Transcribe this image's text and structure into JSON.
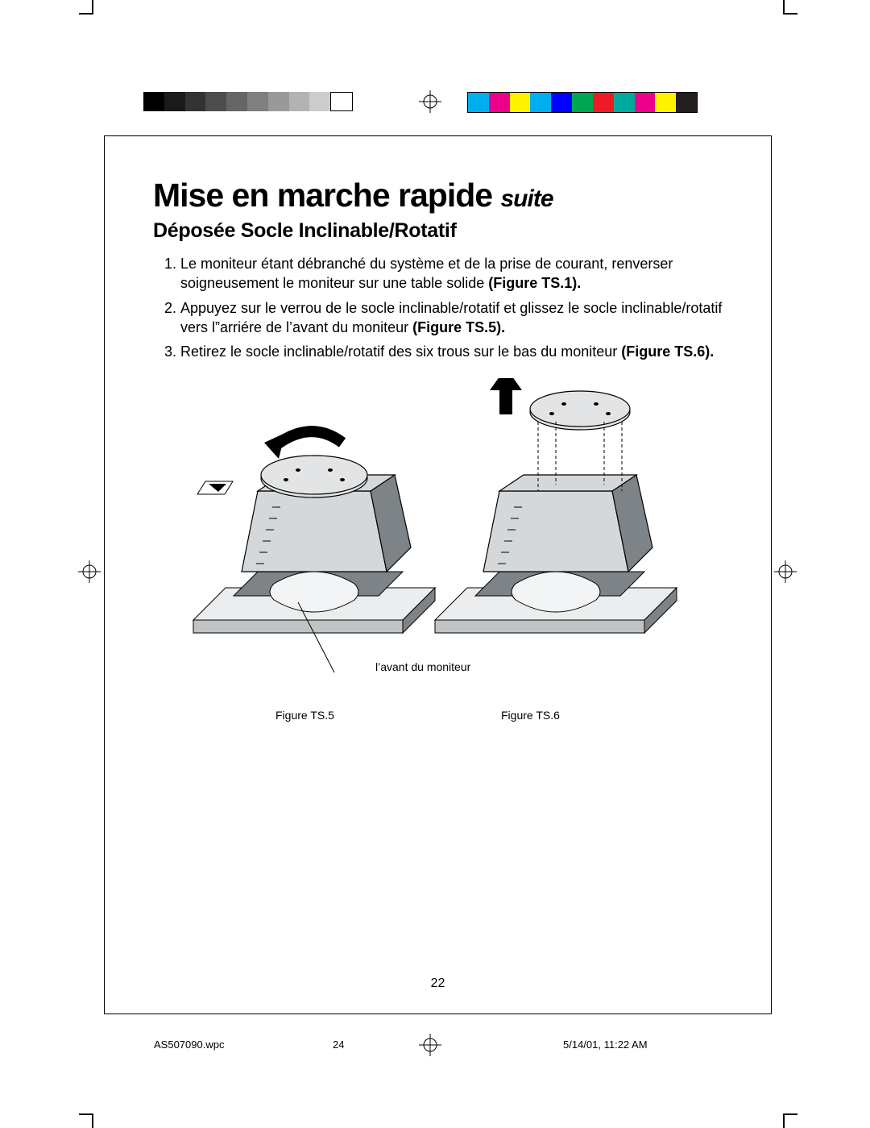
{
  "calibration": {
    "grayscale_bar": [
      "#000000",
      "#1a1a1a",
      "#333333",
      "#4d4d4d",
      "#666666",
      "#808080",
      "#999999",
      "#b3b3b3",
      "#cccccc",
      "#ffffff"
    ],
    "color_bar": [
      "#00aeef",
      "#ec008c",
      "#fff200",
      "#00aeef",
      "#0000ff",
      "#00a651",
      "#ed1c24",
      "#00a99d",
      "#ec008c",
      "#fff200",
      "#231f20"
    ]
  },
  "title_main": "Mise en marche rapide",
  "title_suffix": "suite",
  "subtitle": "Déposée Socle Inclinable/Rotatif",
  "steps": [
    {
      "pre": "Le moniteur étant débranché du système et de la prise de courant, renverser soigneusement le moniteur sur une table solide ",
      "bold": "(Figure TS.1).",
      "post": ""
    },
    {
      "pre": "Appuyez sur le verrou de le socle inclinable/rotatif et glissez le socle inclinable/rotatif vers l”arriére de l’avant du moniteur ",
      "bold": "(Figure TS.5).",
      "post": ""
    },
    {
      "pre": "Retirez le socle inclinable/rotatif des six trous sur le bas du moniteur ",
      "bold": "(Figure TS.6).",
      "post": ""
    }
  ],
  "figure_label_left": "Figure TS.5",
  "figure_label_right": "Figure TS.6",
  "leader_label": "l’avant du moniteur",
  "page_number": "22",
  "slug": {
    "file": "AS507090.wpc",
    "sheet": "24",
    "timestamp": "5/14/01, 11:22 AM"
  },
  "illustration": {
    "type": "technical-line-drawing",
    "description": "Two CRT monitors face-down on a table. Left (TS.5): rotating tilt/swivel base with a twist arrow and inset latch detail; leader line to front bezel labelled. Right (TS.6): base lifted straight up off six alignment holes, with vertical up-arrow and dashed drop lines.",
    "colors": {
      "monitor_body": "#d5d8da",
      "monitor_shadow": "#7d8386",
      "table_top": "#ebedee",
      "table_edge": "#c0c3c5",
      "base_top": "#e2e4e5",
      "outline": "#000000",
      "arrow_fill": "#000000"
    }
  }
}
